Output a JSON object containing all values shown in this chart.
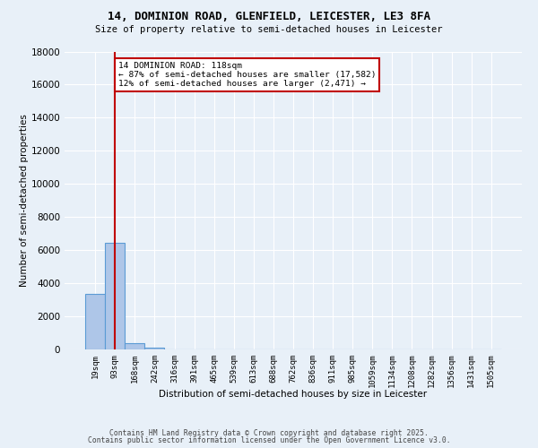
{
  "title_line1": "14, DOMINION ROAD, GLENFIELD, LEICESTER, LE3 8FA",
  "title_line2": "Size of property relative to semi-detached houses in Leicester",
  "xlabel": "Distribution of semi-detached houses by size in Leicester",
  "ylabel": "Number of semi-detached properties",
  "categories": [
    "19sqm",
    "93sqm",
    "168sqm",
    "242sqm",
    "316sqm",
    "391sqm",
    "465sqm",
    "539sqm",
    "613sqm",
    "688sqm",
    "762sqm",
    "836sqm",
    "911sqm",
    "985sqm",
    "1059sqm",
    "1134sqm",
    "1208sqm",
    "1282sqm",
    "1356sqm",
    "1431sqm",
    "1505sqm"
  ],
  "values": [
    3380,
    6450,
    390,
    100,
    0,
    0,
    0,
    0,
    0,
    0,
    0,
    0,
    0,
    0,
    0,
    0,
    0,
    0,
    0,
    0,
    0
  ],
  "bar_color": "#aec6e8",
  "bar_edge_color": "#5b9bd5",
  "vline_x": 1.0,
  "vline_color": "#c00000",
  "annotation_title": "14 DOMINION ROAD: 118sqm",
  "annotation_line1": "← 87% of semi-detached houses are smaller (17,582)",
  "annotation_line2": "12% of semi-detached houses are larger (2,471) →",
  "annotation_box_color": "#ffffff",
  "annotation_box_edge": "#c00000",
  "ylim": [
    0,
    18000
  ],
  "yticks": [
    0,
    2000,
    4000,
    6000,
    8000,
    10000,
    12000,
    14000,
    16000,
    18000
  ],
  "background_color": "#e8f0f8",
  "grid_color": "#ffffff",
  "footer_line1": "Contains HM Land Registry data © Crown copyright and database right 2025.",
  "footer_line2": "Contains public sector information licensed under the Open Government Licence v3.0."
}
